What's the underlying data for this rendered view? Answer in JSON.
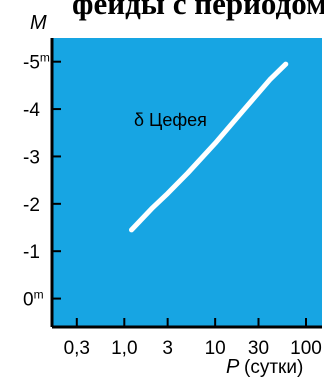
{
  "heading_fragment": "феиды с периодом",
  "chart_data": {
    "type": "line",
    "title": "",
    "xlabel": "P",
    "xlabel_unit": "(сутки)",
    "ylabel": "M",
    "x_scale": "log",
    "y_inverted": true,
    "xlim": [
      0.16,
      150
    ],
    "ylim": [
      0.6,
      -5.5
    ],
    "x_ticks": [
      {
        "value": 0.3,
        "label": "0,3"
      },
      {
        "value": 1.0,
        "label": "1,0"
      },
      {
        "value": 3,
        "label": "3"
      },
      {
        "value": 10,
        "label": "10"
      },
      {
        "value": 30,
        "label": "30"
      },
      {
        "value": 100,
        "label": "100"
      }
    ],
    "y_ticks": [
      {
        "value": -5,
        "label": "-5",
        "sup": "m"
      },
      {
        "value": -4,
        "label": "-4",
        "sup": ""
      },
      {
        "value": -3,
        "label": "-3",
        "sup": ""
      },
      {
        "value": -2,
        "label": "-2",
        "sup": ""
      },
      {
        "value": -1,
        "label": "-1",
        "sup": ""
      },
      {
        "value": 0,
        "label": "0",
        "sup": "m"
      }
    ],
    "series": [
      {
        "x": [
          1.2,
          2,
          3,
          5,
          10,
          20,
          40,
          60
        ],
        "y": [
          -1.45,
          -1.9,
          -2.22,
          -2.65,
          -3.28,
          -3.95,
          -4.62,
          -4.95
        ]
      }
    ],
    "annotation": "δ Цефея",
    "colors": {
      "background": "#17a5e3",
      "line": "#ffffff",
      "axes": "#000000"
    },
    "grid": false
  }
}
